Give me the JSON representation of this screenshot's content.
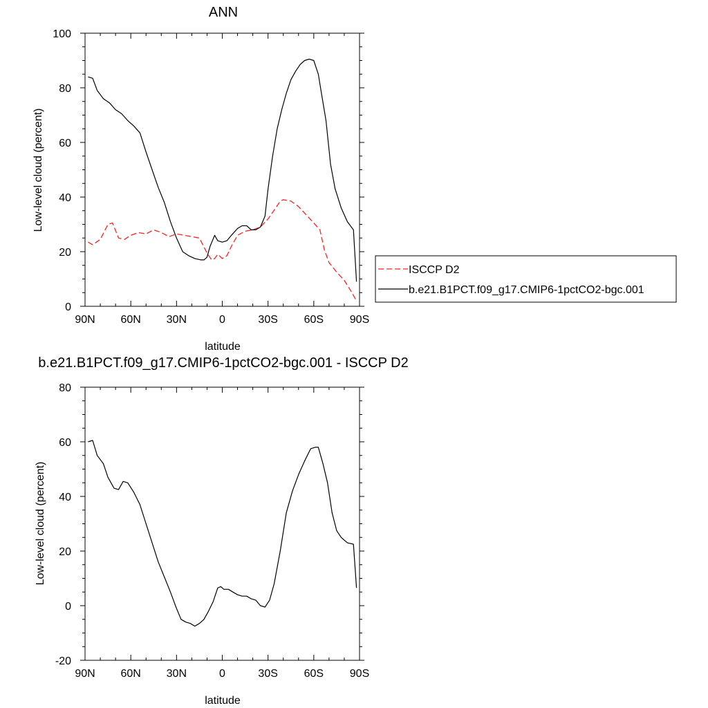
{
  "colors": {
    "black": "#000000",
    "red": "#ff2020",
    "legend_border": "#000000"
  },
  "chart_data": [
    {
      "type": "line",
      "title": "ANN",
      "xlabel": "latitude",
      "ylabel": "Low-level cloud (percent)",
      "xlim": [
        -90,
        90
      ],
      "ylim": [
        0,
        100
      ],
      "x_ticks": [
        -90,
        -60,
        -30,
        0,
        30,
        60,
        90
      ],
      "x_tick_labels": [
        "90N",
        "60N",
        "30N",
        "0",
        "30S",
        "60S",
        "90S"
      ],
      "y_ticks": [
        0,
        20,
        40,
        60,
        80,
        100
      ],
      "y_tick_labels": [
        "0",
        "20",
        "40",
        "60",
        "80",
        "100"
      ],
      "legend": {
        "placement": "right"
      },
      "series": [
        {
          "name": "ISCCP D2",
          "color": "#ff2020",
          "dash": true,
          "x": [
            -88,
            -85,
            -80,
            -75,
            -72,
            -68,
            -64,
            -60,
            -55,
            -50,
            -45,
            -40,
            -35,
            -30,
            -25,
            -20,
            -15,
            -10,
            -7,
            -5,
            -3,
            0,
            3,
            6,
            10,
            15,
            20,
            25,
            30,
            35,
            38,
            40,
            45,
            50,
            55,
            60,
            64,
            67,
            70,
            75,
            80,
            85,
            88
          ],
          "y": [
            23.5,
            22.5,
            24.5,
            30,
            30.5,
            25,
            24.5,
            26,
            27,
            26.5,
            28,
            27,
            25.5,
            26.5,
            26,
            25.5,
            25,
            19.5,
            17,
            17.5,
            19,
            17.5,
            18.5,
            22,
            26,
            27.5,
            28,
            29,
            32,
            36,
            38.5,
            39,
            38.5,
            36.5,
            33.5,
            30.5,
            28,
            20.5,
            16,
            12.5,
            9.5,
            5,
            2
          ]
        },
        {
          "name": "b.e21.B1PCT.f09_g17.CMIP6-1pctCO2-bgc.001",
          "color": "#000000",
          "dash": false,
          "x": [
            -88,
            -85,
            -82,
            -78,
            -74,
            -70,
            -66,
            -62,
            -58,
            -54,
            -50,
            -46,
            -42,
            -38,
            -34,
            -30,
            -26,
            -22,
            -18,
            -14,
            -12,
            -10,
            -8,
            -5,
            -3,
            0,
            3,
            6,
            10,
            13,
            16,
            19,
            22,
            25,
            28,
            30,
            33,
            36,
            39,
            42,
            45,
            48,
            51,
            54,
            57,
            60,
            63,
            65,
            68,
            71,
            74,
            78,
            82,
            86,
            88
          ],
          "y": [
            84,
            83.5,
            79,
            76,
            74.5,
            72,
            70.5,
            68,
            66,
            63.5,
            56.5,
            50,
            43.5,
            38,
            31,
            25,
            20,
            18.5,
            17.5,
            17,
            17,
            18,
            22,
            26,
            24,
            23.5,
            24,
            26,
            28.5,
            29.5,
            29.5,
            28,
            28,
            29,
            33,
            43,
            55,
            65,
            72,
            78,
            83,
            86,
            88.5,
            90,
            90.5,
            90,
            85,
            78,
            68,
            52,
            43,
            36,
            31,
            28,
            9
          ]
        }
      ]
    },
    {
      "type": "line",
      "title": "b.e21.B1PCT.f09_g17.CMIP6-1pctCO2-bgc.001 - ISCCP D2",
      "xlabel": "latitude",
      "ylabel": "Low-level cloud (percent)",
      "xlim": [
        -90,
        90
      ],
      "ylim": [
        -20,
        80
      ],
      "x_ticks": [
        -90,
        -60,
        -30,
        0,
        30,
        60,
        90
      ],
      "x_tick_labels": [
        "90N",
        "60N",
        "30N",
        "0",
        "30S",
        "60S",
        "90S"
      ],
      "y_ticks": [
        -20,
        0,
        20,
        40,
        60,
        80
      ],
      "y_tick_labels": [
        "-20",
        "0",
        "20",
        "40",
        "60",
        "80"
      ],
      "series": [
        {
          "color": "#000000",
          "dash": false,
          "x": [
            -88,
            -85,
            -82,
            -78,
            -75,
            -71,
            -68,
            -65,
            -62,
            -58,
            -54,
            -50,
            -46,
            -42,
            -38,
            -34,
            -30,
            -27,
            -24,
            -21,
            -18,
            -15,
            -12,
            -9,
            -6,
            -3,
            -1,
            1,
            4,
            7,
            10,
            13,
            16,
            19,
            22,
            25,
            28,
            31,
            34,
            38,
            42,
            46,
            50,
            54,
            58,
            61,
            63,
            66,
            69,
            72,
            75,
            78,
            82,
            86,
            88
          ],
          "y": [
            60,
            60.5,
            55,
            52,
            47,
            43,
            42.5,
            45.5,
            45,
            41.5,
            37,
            30,
            23,
            16,
            10.5,
            5,
            -1,
            -5,
            -6,
            -6.5,
            -7.5,
            -6.5,
            -5,
            -2,
            1.5,
            6.5,
            7,
            6,
            6,
            5,
            4,
            3.5,
            3.5,
            2.5,
            2,
            0,
            -0.5,
            2,
            8,
            20,
            34,
            42,
            48,
            53,
            57.5,
            58,
            58,
            52,
            45,
            34,
            27.5,
            25,
            23,
            22.5,
            6.5
          ]
        }
      ]
    }
  ]
}
